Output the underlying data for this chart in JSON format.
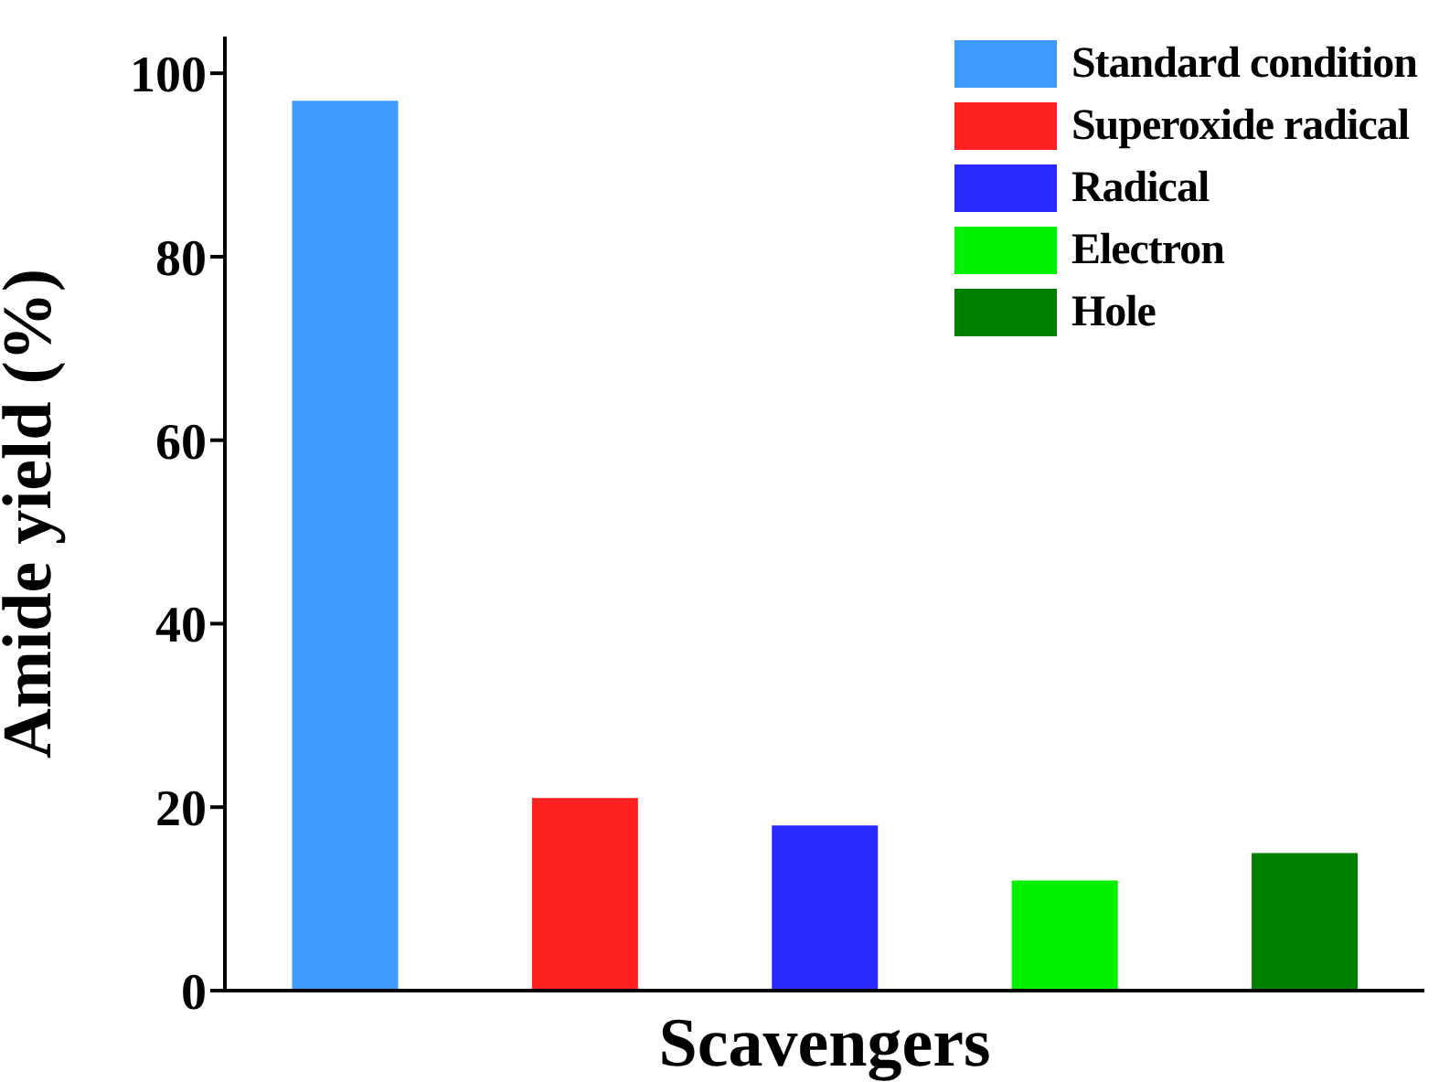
{
  "chart_data": {
    "type": "bar",
    "xlabel": "Scavengers",
    "ylabel": "Amide yield (%)",
    "categories": [
      null,
      null,
      null,
      null,
      null
    ],
    "ylim": [
      0,
      104
    ],
    "yticks": [
      0,
      20,
      40,
      60,
      80,
      100
    ],
    "grid": false,
    "legend": "top right",
    "series": [
      {
        "name": "Standard condition",
        "color": "#3d9bff",
        "values": [
          97,
          null,
          null,
          null,
          null
        ]
      },
      {
        "name": "Superoxide radical",
        "color": "#ff2020",
        "values": [
          null,
          21,
          null,
          null,
          null
        ]
      },
      {
        "name": "Radical",
        "color": "#2a2aff",
        "values": [
          null,
          null,
          18,
          null,
          null
        ]
      },
      {
        "name": "Electron",
        "color": "#00f000",
        "values": [
          null,
          null,
          null,
          12,
          null
        ]
      },
      {
        "name": "Hole",
        "color": "#008000",
        "values": [
          null,
          null,
          null,
          null,
          15
        ]
      }
    ]
  }
}
